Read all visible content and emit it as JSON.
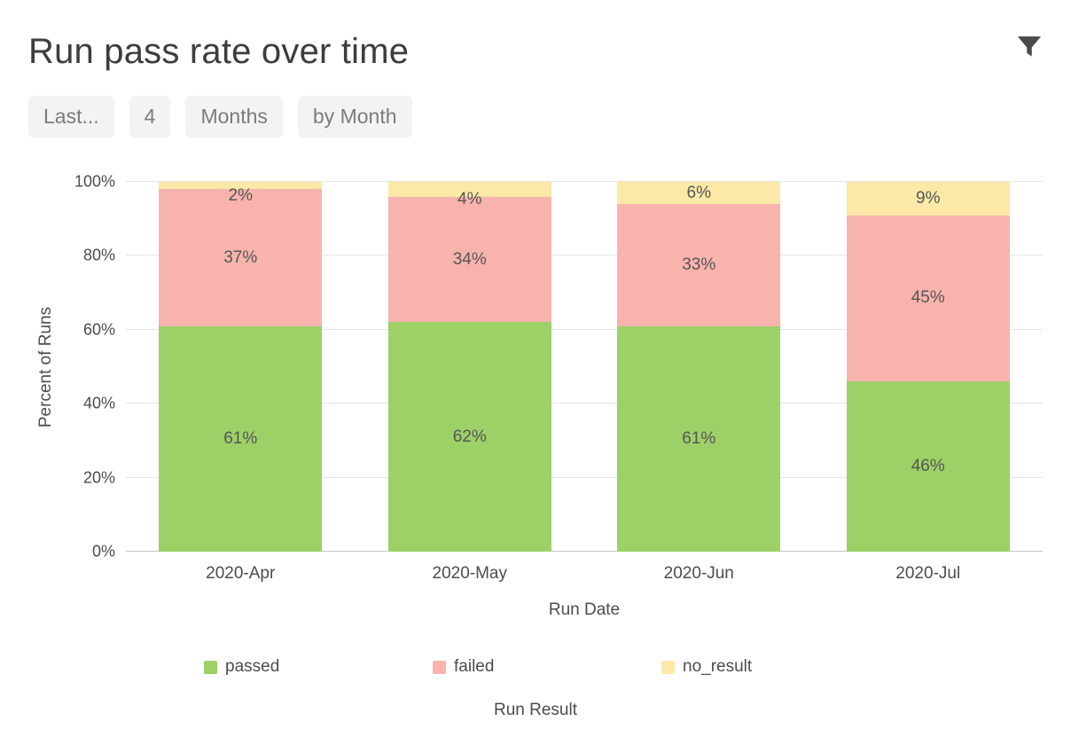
{
  "header": {
    "title": "Run pass rate over time"
  },
  "filters": [
    {
      "label": "Last..."
    },
    {
      "label": "4"
    },
    {
      "label": "Months"
    },
    {
      "label": "by Month"
    }
  ],
  "chart_data": {
    "type": "bar",
    "stacked": true,
    "percent_stacked": true,
    "title": "Run pass rate over time",
    "categories": [
      "2020-Apr",
      "2020-May",
      "2020-Jun",
      "2020-Jul"
    ],
    "series": [
      {
        "name": "passed",
        "color": "#9dd167",
        "values": [
          61,
          62,
          61,
          46
        ]
      },
      {
        "name": "failed",
        "color": "#f9b3ad",
        "values": [
          37,
          34,
          33,
          45
        ]
      },
      {
        "name": "no_result",
        "color": "#fce9a8",
        "values": [
          2,
          4,
          6,
          9
        ]
      }
    ],
    "xlabel": "Run Date",
    "ylabel": "Percent of Runs",
    "legend_title": "Run Result",
    "ylim": [
      0,
      100
    ],
    "yticks": [
      "0%",
      "20%",
      "40%",
      "60%",
      "80%",
      "100%"
    ],
    "grid": "horizontal",
    "legend_position": "bottom"
  }
}
